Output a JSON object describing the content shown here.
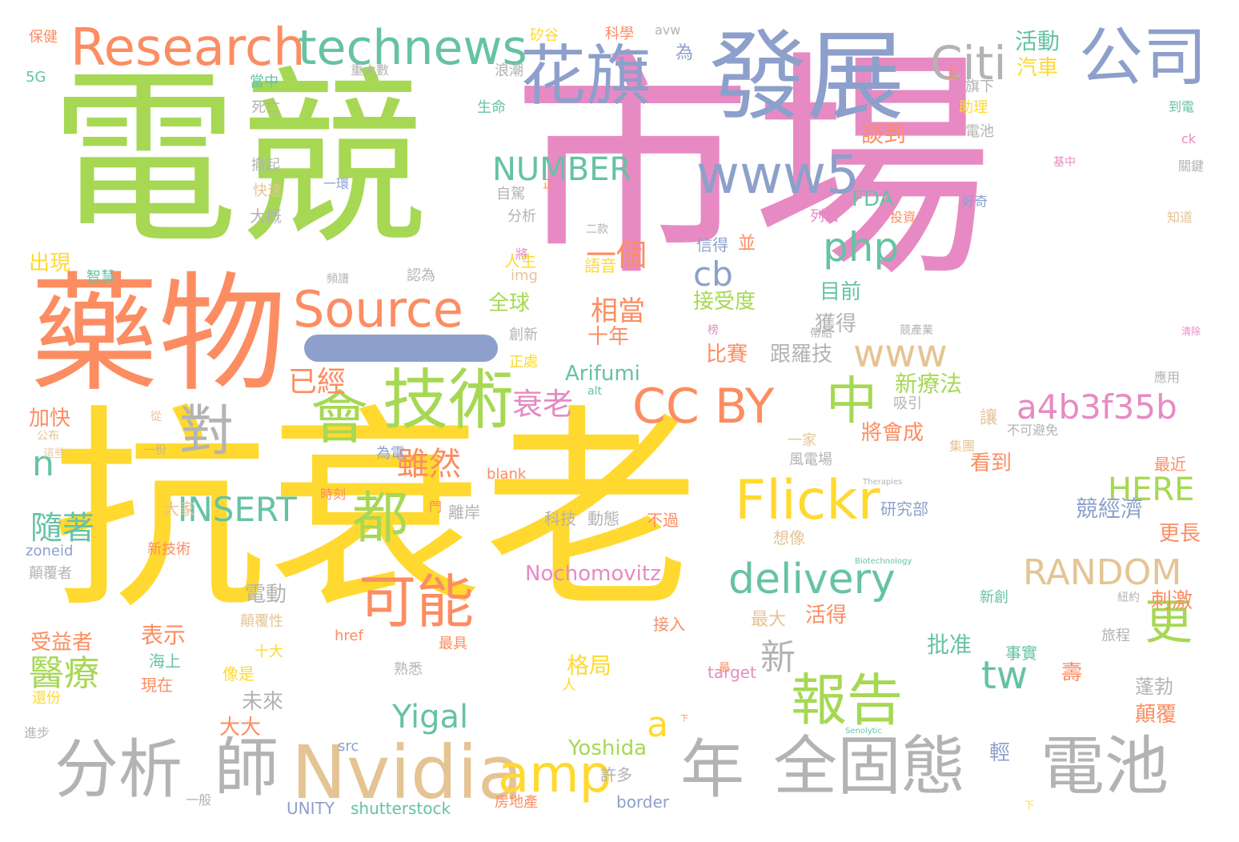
{
  "palette": {
    "green": "#a6d854",
    "pink": "#e78ac3",
    "yellow": "#ffd92f",
    "orange": "#fc8d62",
    "blue": "#8da0cb",
    "teal": "#66c2a5",
    "tan": "#e5c494",
    "gray": "#b3b3b3"
  },
  "words": [
    {
      "text": "電競",
      "color": "green"
    },
    {
      "text": "市場",
      "color": "pink"
    },
    {
      "text": "抗衰老",
      "color": "yellow"
    },
    {
      "text": "藥物",
      "color": "orange"
    },
    {
      "text": "發展",
      "color": "blue"
    },
    {
      "text": "Research",
      "color": "orange"
    },
    {
      "text": "technews",
      "color": "teal"
    },
    {
      "text": "花旗",
      "color": "blue"
    },
    {
      "text": "Citi",
      "color": "gray"
    },
    {
      "text": "公司",
      "color": "blue"
    },
    {
      "text": "Source",
      "color": "orange"
    },
    {
      "text": "www5",
      "color": "blue"
    },
    {
      "text": "NUMBER",
      "color": "teal"
    },
    {
      "text": "php",
      "color": "teal"
    },
    {
      "text": "cb",
      "color": "blue"
    },
    {
      "text": "技術",
      "color": "green"
    },
    {
      "text": "會",
      "color": "green"
    },
    {
      "text": "對",
      "color": "gray"
    },
    {
      "text": "CC BY",
      "color": "orange"
    },
    {
      "text": "中",
      "color": "green"
    },
    {
      "text": "www",
      "color": "tan"
    },
    {
      "text": "a4b3f35b",
      "color": "pink"
    },
    {
      "text": "n",
      "color": "teal"
    },
    {
      "text": "都",
      "color": "green"
    },
    {
      "text": "Flickr",
      "color": "yellow"
    },
    {
      "text": "INSERT",
      "color": "teal"
    },
    {
      "text": "可能",
      "color": "orange"
    },
    {
      "text": "delivery",
      "color": "teal"
    },
    {
      "text": "更",
      "color": "green"
    },
    {
      "text": "報告",
      "color": "green"
    },
    {
      "text": "tw",
      "color": "teal"
    },
    {
      "text": "Nvidia",
      "color": "tan"
    },
    {
      "text": "amp",
      "color": "yellow"
    },
    {
      "text": "分析",
      "color": "gray"
    },
    {
      "text": "師",
      "color": "gray"
    },
    {
      "text": "年",
      "color": "gray"
    },
    {
      "text": "全固態",
      "color": "gray"
    },
    {
      "text": "電池",
      "color": "gray"
    },
    {
      "text": "RANDOM",
      "color": "tan"
    },
    {
      "text": "HERE",
      "color": "green"
    },
    {
      "text": "Yigal",
      "color": "teal"
    },
    {
      "text": "a",
      "color": "yellow"
    },
    {
      "text": "Yoshida",
      "color": "green"
    },
    {
      "text": "Nochomovitz",
      "color": "pink"
    },
    {
      "text": "Arifumi",
      "color": "teal"
    },
    {
      "text": "醫療",
      "color": "green"
    },
    {
      "text": "隨著",
      "color": "teal"
    },
    {
      "text": "雖然",
      "color": "orange"
    },
    {
      "text": "衰老",
      "color": "pink"
    },
    {
      "text": "一個",
      "color": "orange"
    },
    {
      "text": "相當",
      "color": "orange"
    },
    {
      "text": "已經",
      "color": "orange"
    },
    {
      "text": "新",
      "color": "gray"
    },
    {
      "text": "批准",
      "color": "teal"
    },
    {
      "text": "競經濟",
      "color": "blue"
    },
    {
      "text": "新療法",
      "color": "green"
    },
    {
      "text": "活動",
      "color": "teal"
    },
    {
      "text": "汽車",
      "color": "yellow"
    },
    {
      "text": "談到",
      "color": "orange"
    },
    {
      "text": "FDA",
      "color": "teal"
    },
    {
      "text": "接受度",
      "color": "green"
    },
    {
      "text": "全球",
      "color": "green"
    },
    {
      "text": "目前",
      "color": "teal"
    },
    {
      "text": "獲得",
      "color": "gray"
    },
    {
      "text": "十年",
      "color": "orange"
    },
    {
      "text": "比賽",
      "color": "orange"
    },
    {
      "text": "跟羅技",
      "color": "gray"
    },
    {
      "text": "將會成",
      "color": "orange"
    },
    {
      "text": "格局",
      "color": "yellow"
    },
    {
      "text": "活得",
      "color": "orange"
    },
    {
      "text": "最大",
      "color": "tan"
    },
    {
      "text": "電動",
      "color": "gray"
    },
    {
      "text": "未來",
      "color": "gray"
    },
    {
      "text": "大大",
      "color": "orange"
    },
    {
      "text": "表示",
      "color": "orange"
    },
    {
      "text": "受益者",
      "color": "orange"
    },
    {
      "text": "出現",
      "color": "yellow"
    },
    {
      "text": "加快",
      "color": "orange"
    },
    {
      "text": "看到",
      "color": "orange"
    },
    {
      "text": "更長",
      "color": "orange"
    },
    {
      "text": "刺激",
      "color": "orange"
    },
    {
      "text": "蓬勃",
      "color": "gray"
    },
    {
      "text": "顛覆",
      "color": "orange"
    },
    {
      "text": "壽",
      "color": "orange"
    },
    {
      "text": "輕",
      "color": "blue"
    },
    {
      "text": "許多",
      "color": "gray"
    },
    {
      "text": "shutterstock",
      "color": "teal"
    },
    {
      "text": "UNITY",
      "color": "blue"
    },
    {
      "text": "border",
      "color": "blue"
    },
    {
      "text": "房地產",
      "color": "orange"
    },
    {
      "text": "src",
      "color": "blue"
    },
    {
      "text": "一般",
      "color": "gray"
    },
    {
      "text": "進步",
      "color": "gray"
    },
    {
      "text": "還份",
      "color": "yellow"
    },
    {
      "text": "現在",
      "color": "orange"
    },
    {
      "text": "海上",
      "color": "teal"
    },
    {
      "text": "像是",
      "color": "yellow"
    },
    {
      "text": "十大",
      "color": "yellow"
    },
    {
      "text": "顛覆性",
      "color": "tan"
    },
    {
      "text": "href",
      "color": "orange"
    },
    {
      "text": "熟悉",
      "color": "gray"
    },
    {
      "text": "最具",
      "color": "orange"
    },
    {
      "text": "接入",
      "color": "orange"
    },
    {
      "text": "target",
      "color": "pink"
    },
    {
      "text": "事實",
      "color": "teal"
    },
    {
      "text": "旅程",
      "color": "gray"
    },
    {
      "text": "新創",
      "color": "teal"
    },
    {
      "text": "紐約",
      "color": "gray"
    },
    {
      "text": "應用",
      "color": "gray"
    },
    {
      "text": "最近",
      "color": "orange"
    },
    {
      "text": "研究部",
      "color": "blue"
    },
    {
      "text": "不可避免",
      "color": "gray"
    },
    {
      "text": "吸引",
      "color": "gray"
    },
    {
      "text": "讓",
      "color": "tan"
    },
    {
      "text": "一家",
      "color": "tan"
    },
    {
      "text": "風電場",
      "color": "gray"
    },
    {
      "text": "想像",
      "color": "tan"
    },
    {
      "text": "不過",
      "color": "orange"
    },
    {
      "text": "科技",
      "color": "gray"
    },
    {
      "text": "動態",
      "color": "gray"
    },
    {
      "text": "離岸",
      "color": "gray"
    },
    {
      "text": "門",
      "color": "orange"
    },
    {
      "text": "時刻",
      "color": "orange"
    },
    {
      "text": "大家",
      "color": "tan"
    },
    {
      "text": "新技術",
      "color": "orange"
    },
    {
      "text": "zoneid",
      "color": "blue"
    },
    {
      "text": "顛覆者",
      "color": "gray"
    },
    {
      "text": "blank",
      "color": "orange"
    },
    {
      "text": "集團",
      "color": "tan"
    },
    {
      "text": "為電",
      "color": "blue"
    },
    {
      "text": "alt",
      "color": "teal"
    },
    {
      "text": "正處",
      "color": "yellow"
    },
    {
      "text": "創新",
      "color": "gray"
    },
    {
      "text": "img",
      "color": "tan"
    },
    {
      "text": "認為",
      "color": "gray"
    },
    {
      "text": "頻譜",
      "color": "gray"
    },
    {
      "text": "智慧",
      "color": "teal"
    },
    {
      "text": "人生",
      "color": "yellow"
    },
    {
      "text": "將",
      "color": "pink"
    },
    {
      "text": "二款",
      "color": "gray"
    },
    {
      "text": "信得",
      "color": "blue"
    },
    {
      "text": "並",
      "color": "orange"
    },
    {
      "text": "語音",
      "color": "yellow"
    },
    {
      "text": "分析",
      "color": "gray"
    },
    {
      "text": "自駕",
      "color": "gray"
    },
    {
      "text": "正",
      "color": "orange"
    },
    {
      "text": "一環",
      "color": "blue"
    },
    {
      "text": "大概",
      "color": "gray"
    },
    {
      "text": "快速",
      "color": "tan"
    },
    {
      "text": "撤起",
      "color": "gray"
    },
    {
      "text": "死亡",
      "color": "gray"
    },
    {
      "text": "當中",
      "color": "teal"
    },
    {
      "text": "5G",
      "color": "teal"
    },
    {
      "text": "保健",
      "color": "orange"
    },
    {
      "text": "重大數",
      "color": "gray"
    },
    {
      "text": "浪潮",
      "color": "gray"
    },
    {
      "text": "生命",
      "color": "teal"
    },
    {
      "text": "矽谷",
      "color": "yellow"
    },
    {
      "text": "科學",
      "color": "orange"
    },
    {
      "text": "avw",
      "color": "gray"
    },
    {
      "text": "為",
      "color": "blue"
    },
    {
      "text": "據",
      "color": "pink"
    },
    {
      "text": "旗下",
      "color": "gray"
    },
    {
      "text": "助理",
      "color": "yellow"
    },
    {
      "text": "電池",
      "color": "gray"
    },
    {
      "text": "上",
      "color": "orange"
    },
    {
      "text": "到電",
      "color": "teal"
    },
    {
      "text": "ck",
      "color": "pink"
    },
    {
      "text": "基中",
      "color": "pink"
    },
    {
      "text": "關鍵",
      "color": "gray"
    },
    {
      "text": "知道",
      "color": "tan"
    },
    {
      "text": "好奇",
      "color": "blue"
    },
    {
      "text": "投資",
      "color": "orange"
    },
    {
      "text": "列出",
      "color": "pink"
    },
    {
      "text": "榜",
      "color": "pink"
    },
    {
      "text": "帶給",
      "color": "gray"
    },
    {
      "text": "競產業",
      "color": "gray"
    },
    {
      "text": "清除",
      "color": "pink"
    },
    {
      "text": "從",
      "color": "tan"
    },
    {
      "text": "一份",
      "color": "gray"
    },
    {
      "text": "公布",
      "color": "tan"
    },
    {
      "text": "這些",
      "color": "tan"
    },
    {
      "text": "人",
      "color": "yellow"
    },
    {
      "text": "最",
      "color": "orange"
    },
    {
      "text": "Therapies",
      "color": "gray"
    },
    {
      "text": "Biotechnology",
      "color": "teal"
    },
    {
      "text": "Senolytic",
      "color": "teal"
    },
    {
      "text": "下",
      "color": "yellow"
    },
    {
      "text": "下",
      "color": "orange"
    }
  ]
}
